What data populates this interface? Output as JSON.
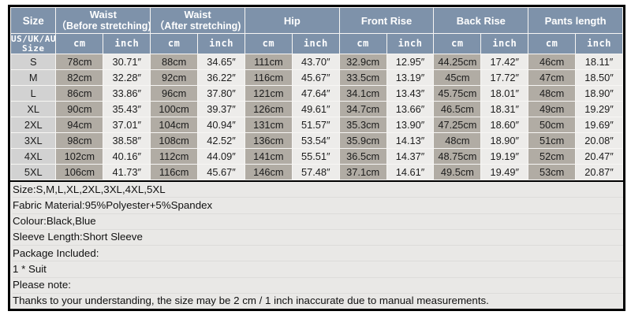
{
  "colors": {
    "header_bg": "#7e92aa",
    "header_text": "#ffffff",
    "size_cell_bg": "#d2d2d2",
    "cm_cell_bg": "#b1aca4",
    "inch_cell_bg": "#edecea",
    "notes_bg": "#e9e8e6",
    "border": "#000000"
  },
  "table": {
    "size_header": "Size",
    "size_sub_header": "US/UK/AU\nSize",
    "unit_cm": "cm",
    "unit_inch": "inch",
    "groups": [
      {
        "title": "Waist",
        "subtitle": "（Before stretching)"
      },
      {
        "title": "Waist",
        "subtitle": "（After stretching)"
      },
      {
        "title": "Hip",
        "subtitle": ""
      },
      {
        "title": "Front Rise",
        "subtitle": ""
      },
      {
        "title": "Back Rise",
        "subtitle": ""
      },
      {
        "title": "Pants length",
        "subtitle": ""
      }
    ],
    "rows": [
      {
        "size": "S",
        "values": [
          "78cm",
          "30.71″",
          "88cm",
          "34.65″",
          "111cm",
          "43.70″",
          "32.9cm",
          "12.95″",
          "44.25cm",
          "17.42″",
          "46cm",
          "18.11″"
        ]
      },
      {
        "size": "M",
        "values": [
          "82cm",
          "32.28″",
          "92cm",
          "36.22″",
          "116cm",
          "45.67″",
          "33.5cm",
          "13.19″",
          "45cm",
          "17.72″",
          "47cm",
          "18.50″"
        ]
      },
      {
        "size": "L",
        "values": [
          "86cm",
          "33.86″",
          "96cm",
          "37.80″",
          "121cm",
          "47.64″",
          "34.1cm",
          "13.43″",
          "45.75cm",
          "18.01″",
          "48cm",
          "18.90″"
        ]
      },
      {
        "size": "XL",
        "values": [
          "90cm",
          "35.43″",
          "100cm",
          "39.37″",
          "126cm",
          "49.61″",
          "34.7cm",
          "13.66″",
          "46.5cm",
          "18.31″",
          "49cm",
          "19.29″"
        ]
      },
      {
        "size": "2XL",
        "values": [
          "94cm",
          "37.01″",
          "104cm",
          "40.94″",
          "131cm",
          "51.57″",
          "35.3cm",
          "13.90″",
          "47.25cm",
          "18.60″",
          "50cm",
          "19.69″"
        ]
      },
      {
        "size": "3XL",
        "values": [
          "98cm",
          "38.58″",
          "108cm",
          "42.52″",
          "136cm",
          "53.54″",
          "35.9cm",
          "14.13″",
          "48cm",
          "18.90″",
          "51cm",
          "20.08″"
        ]
      },
      {
        "size": "4XL",
        "values": [
          "102cm",
          "40.16″",
          "112cm",
          "44.09″",
          "141cm",
          "55.51″",
          "36.5cm",
          "14.37″",
          "48.75cm",
          "19.19″",
          "52cm",
          "20.47″"
        ]
      },
      {
        "size": "5XL",
        "values": [
          "106cm",
          "41.73″",
          "116cm",
          "45.67″",
          "146cm",
          "57.48″",
          "37.1cm",
          "14.61″",
          "49.5cm",
          "19.49″",
          "53cm",
          "20.87″"
        ]
      }
    ]
  },
  "notes": {
    "lines": [
      "Size:S,M,L,XL,2XL,3XL,4XL,5XL",
      "Fabric Material:95%Polyester+5%Spandex",
      "Colour:Black,Blue",
      "Sleeve Length:Short Sleeve",
      "Package Included:",
      "1 * Suit",
      "Please note:",
      "Thanks to your understanding, the size may be 2 cm / 1 inch inaccurate due to manual measurements."
    ]
  }
}
